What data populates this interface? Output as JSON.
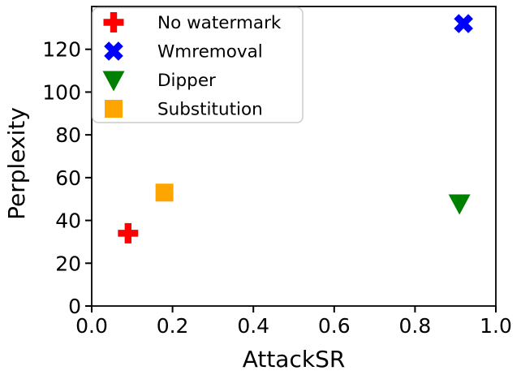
{
  "figure": {
    "background": "#ffffff",
    "border_color": "#000000"
  },
  "chart_data": {
    "type": "scatter",
    "title": "",
    "xlabel": "AttackSR",
    "ylabel": "Perplexity",
    "xlim": [
      0.0,
      1.0
    ],
    "ylim": [
      0,
      140
    ],
    "x_ticks": [
      0.0,
      0.2,
      0.4,
      0.6,
      0.8,
      1.0
    ],
    "x_tick_labels": [
      "0.0",
      "0.2",
      "0.4",
      "0.6",
      "0.8",
      "1.0"
    ],
    "y_ticks": [
      0,
      20,
      40,
      60,
      80,
      100,
      120
    ],
    "y_tick_labels": [
      "0",
      "20",
      "40",
      "60",
      "80",
      "100",
      "120"
    ],
    "grid": false,
    "legend_position": "upper-left",
    "legend": {
      "border_color": "#cccccc",
      "background": "rgba(255,255,255,0.85)",
      "entries": [
        "No watermark",
        "Wmremoval",
        "Dipper",
        "Substitution"
      ]
    },
    "series": [
      {
        "name": "No watermark",
        "marker": "plus_filled",
        "color": "#ff0000",
        "points": [
          {
            "x": 0.09,
            "y": 34
          }
        ]
      },
      {
        "name": "Wmremoval",
        "marker": "x_filled",
        "color": "#0000ff",
        "points": [
          {
            "x": 0.92,
            "y": 132
          }
        ]
      },
      {
        "name": "Dipper",
        "marker": "triangle_down",
        "color": "#008000",
        "points": [
          {
            "x": 0.91,
            "y": 48
          }
        ]
      },
      {
        "name": "Substitution",
        "marker": "square",
        "color": "#ffa500",
        "points": [
          {
            "x": 0.18,
            "y": 53
          }
        ]
      }
    ]
  }
}
